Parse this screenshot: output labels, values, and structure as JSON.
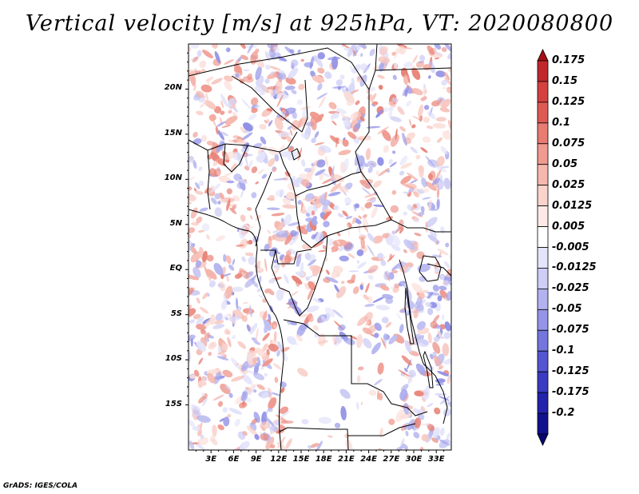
{
  "title": "Vertical velocity [m/s] at 925hPa, VT: 2020080800",
  "footer": "GrADS: IGES/COLA",
  "map": {
    "lon_range": [
      0,
      35
    ],
    "lat_range": [
      -20,
      25
    ],
    "lat_ticks": [
      "20N",
      "15N",
      "10N",
      "5N",
      "EQ",
      "5S",
      "10S",
      "15S"
    ],
    "lon_ticks": [
      "3E",
      "6E",
      "9E",
      "12E",
      "15E",
      "18E",
      "21E",
      "24E",
      "27E",
      "30E",
      "33E"
    ],
    "field": "vertical velocity",
    "units": "m/s",
    "level": "925hPa"
  },
  "colorbar": {
    "labels": [
      "0.175",
      "0.15",
      "0.125",
      "0.1",
      "0.075",
      "0.05",
      "0.025",
      "0.0125",
      "0.005",
      "-0.005",
      "-0.0125",
      "-0.025",
      "-0.05",
      "-0.075",
      "-0.1",
      "-0.125",
      "-0.175",
      "-0.2"
    ],
    "colors": [
      "#a50f15",
      "#c0282d",
      "#d4413f",
      "#e05a55",
      "#e87b72",
      "#f09a90",
      "#f6b8ae",
      "#fad4cc",
      "#fdeae6",
      "#ffffff",
      "#e4e4fb",
      "#cdcdf6",
      "#b2b2f0",
      "#9494e8",
      "#7575de",
      "#5555d2",
      "#3a3ac2",
      "#2222ad",
      "#11118f",
      "#080870"
    ]
  }
}
